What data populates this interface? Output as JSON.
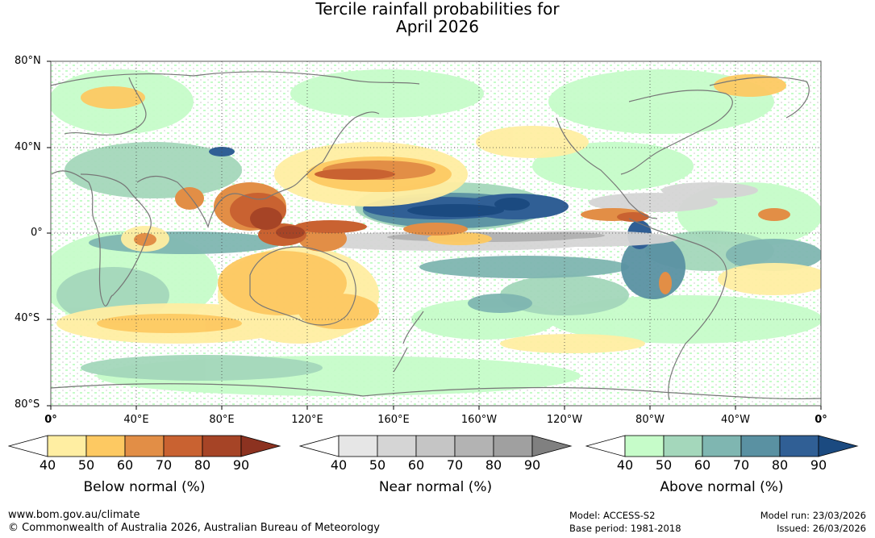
{
  "title": {
    "line1": "Tercile rainfall probabilities for",
    "line2": "April 2026"
  },
  "map": {
    "lat_labels": [
      "80°N",
      "40°N",
      "0°",
      "40°S",
      "80°S"
    ],
    "lon_labels": [
      "0°",
      "40°E",
      "80°E",
      "120°E",
      "160°E",
      "160°W",
      "120°W",
      "80°W",
      "40°W",
      "0°"
    ],
    "grid": true
  },
  "legends": [
    {
      "title": "Below normal (%)",
      "ticks": [
        "40",
        "50",
        "60",
        "70",
        "80",
        "90"
      ],
      "colors": [
        "#ffffff",
        "#ffeea2",
        "#fdc962",
        "#e28e46",
        "#c96231",
        "#a64426",
        "#8c3220"
      ]
    },
    {
      "title": "Near normal (%)",
      "ticks": [
        "40",
        "50",
        "60",
        "70",
        "80",
        "90"
      ],
      "colors": [
        "#ffffff",
        "#e6e6e6",
        "#d5d5d5",
        "#c5c5c5",
        "#b3b3b3",
        "#a0a0a0",
        "#808080"
      ]
    },
    {
      "title": "Above normal (%)",
      "ticks": [
        "40",
        "50",
        "60",
        "70",
        "80",
        "90"
      ],
      "colors": [
        "#ffffff",
        "#c6fcc9",
        "#a4d7bb",
        "#7fb6b1",
        "#5a91a2",
        "#305f95",
        "#1b4a80"
      ]
    }
  ],
  "footer": {
    "website": "www.bom.gov.au/climate",
    "copyright": "© Commonwealth of Australia 2026, Australian Bureau of Meteorology",
    "model": "Model: ACCESS-S2",
    "base_period": "Base period: 1981-2018",
    "model_run": "Model run: 23/03/2026",
    "issued": "Issued: 26/03/2026"
  }
}
